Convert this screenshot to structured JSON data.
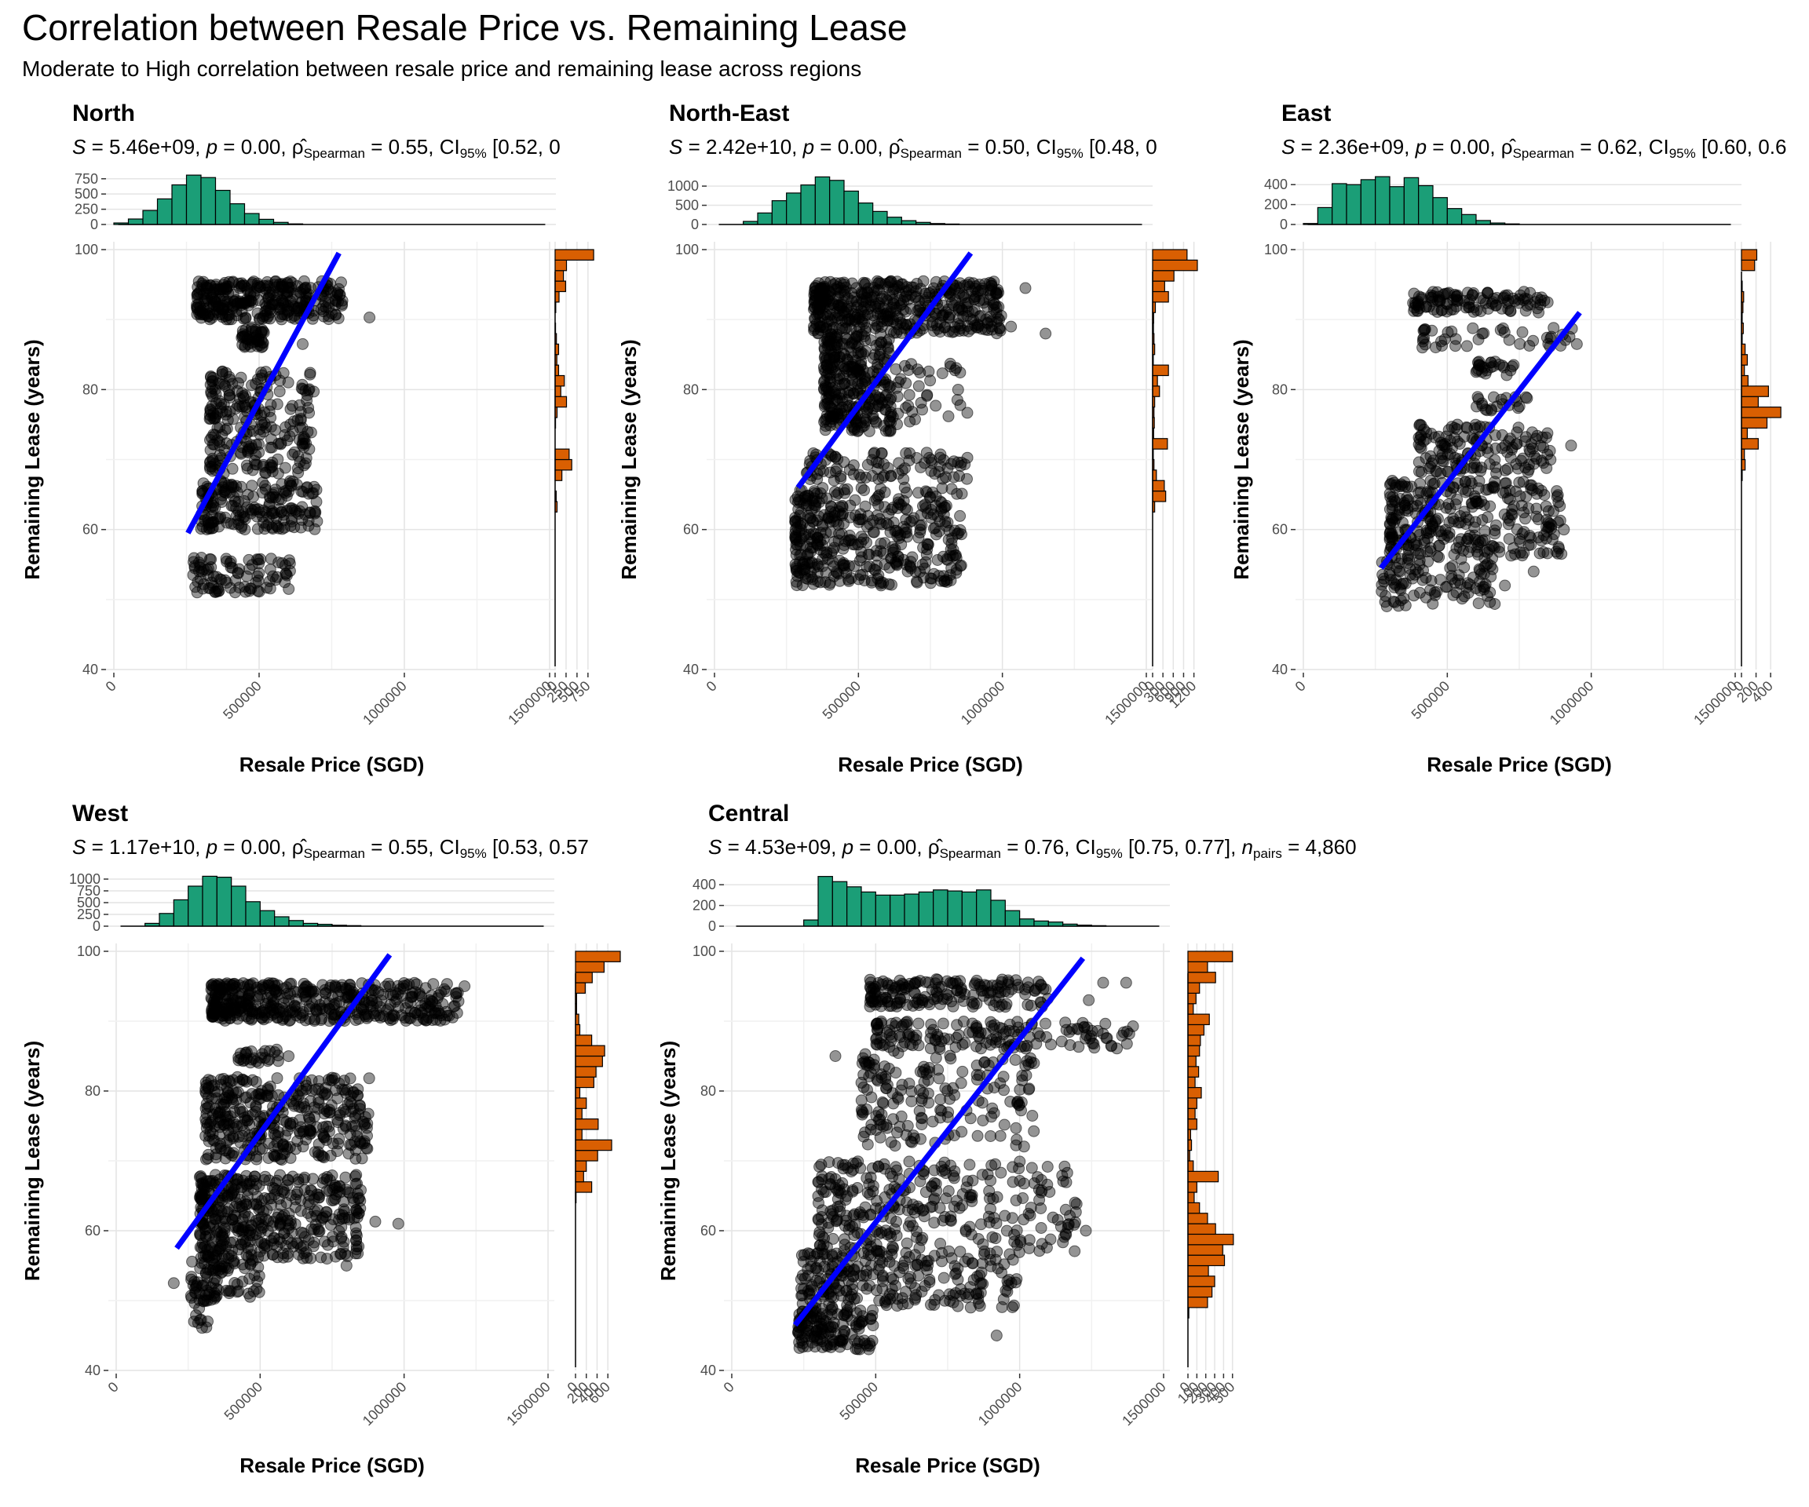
{
  "title": "Correlation between Resale Price vs. Remaining Lease",
  "subtitle": "Moderate to High correlation between resale price and remaining lease across regions",
  "chart_data": [
    {
      "type": "scatter",
      "region": "North",
      "stats": {
        "S": "5.46e+09",
        "p": "0.00",
        "rho": "0.55",
        "ci": "[0.52, 0"
      },
      "xlabel": "Resale Price (SGD)",
      "ylabel": "Remaining Lease (years)",
      "xlim": [
        0,
        1500000
      ],
      "ylim": [
        40,
        100
      ],
      "xticks": [
        "0",
        "500000",
        "1000000",
        "1500000"
      ],
      "yticks": [
        "40",
        "60",
        "80",
        "100"
      ],
      "trend_line": {
        "x": [
          255000,
          775000
        ],
        "y": [
          59.5,
          99.5
        ]
      },
      "clusters": [
        {
          "x0": 285000,
          "x1": 790000,
          "y0": 90,
          "y1": 95.5,
          "n": 900
        },
        {
          "x0": 440000,
          "x1": 520000,
          "y0": 86,
          "y1": 89,
          "n": 120
        },
        {
          "x0": 330000,
          "x1": 690000,
          "y0": 68,
          "y1": 83,
          "n": 700
        },
        {
          "x0": 300000,
          "x1": 700000,
          "y0": 60,
          "y1": 67,
          "n": 550
        },
        {
          "x0": 270000,
          "x1": 620000,
          "y0": 51,
          "y1": 56,
          "n": 260
        }
      ],
      "outliers": [
        [
          880000,
          90.3
        ],
        [
          740000,
          90.5
        ],
        [
          785000,
          92
        ],
        [
          650000,
          86.5
        ]
      ],
      "top_histogram": {
        "axis_ticks": [
          "0",
          "250",
          "500",
          "750"
        ],
        "max": 850,
        "counts": [
          25,
          90,
          230,
          420,
          650,
          810,
          770,
          560,
          340,
          180,
          85,
          35,
          10,
          4,
          2,
          1,
          1,
          0,
          0,
          0,
          0,
          0,
          0,
          0,
          0,
          0,
          0,
          0,
          0,
          0
        ]
      },
      "right_histogram": {
        "axis_ticks": [
          "0",
          "250",
          "500",
          "750"
        ],
        "max": 950,
        "counts": [
          0,
          0,
          0,
          0,
          0,
          0,
          0,
          0,
          0,
          0,
          0,
          0,
          0,
          0,
          3,
          45,
          25,
          5,
          155,
          380,
          320,
          5,
          8,
          10,
          45,
          260,
          130,
          210,
          80,
          40,
          80,
          30,
          10,
          8,
          15,
          90,
          240,
          190,
          260,
          880
        ]
      }
    },
    {
      "type": "scatter",
      "region": "North-East",
      "stats": {
        "S": "2.42e+10",
        "p": "0.00",
        "rho": "0.50",
        "ci": "[0.48, 0"
      },
      "xlabel": "Resale Price (SGD)",
      "ylabel": "Remaining Lease (years)",
      "xlim": [
        0,
        1500000
      ],
      "ylim": [
        40,
        100
      ],
      "xticks": [
        "0",
        "500000",
        "1000000",
        "1500000"
      ],
      "yticks": [
        "40",
        "60",
        "80",
        "100"
      ],
      "trend_line": {
        "x": [
          290000,
          890000
        ],
        "y": [
          66,
          99.5
        ]
      },
      "clusters": [
        {
          "x0": 345000,
          "x1": 1000000,
          "y0": 88,
          "y1": 95.5,
          "n": 1300
        },
        {
          "x0": 380000,
          "x1": 620000,
          "y0": 74,
          "y1": 88,
          "n": 700
        },
        {
          "x0": 380000,
          "x1": 880000,
          "y0": 75,
          "y1": 84,
          "n": 300
        },
        {
          "x0": 320000,
          "x1": 880000,
          "y0": 67,
          "y1": 71,
          "n": 250
        },
        {
          "x0": 280000,
          "x1": 860000,
          "y0": 52,
          "y1": 66,
          "n": 1200
        }
      ],
      "outliers": [
        [
          1030000,
          89
        ],
        [
          1150000,
          88
        ],
        [
          950000,
          88.5
        ],
        [
          1080000,
          94.5
        ],
        [
          810000,
          61
        ]
      ],
      "top_histogram": {
        "axis_ticks": [
          "0",
          "500",
          "1000"
        ],
        "max": 1350,
        "counts": [
          0,
          10,
          80,
          300,
          620,
          820,
          1030,
          1240,
          1150,
          870,
          560,
          340,
          190,
          100,
          55,
          25,
          12,
          6,
          3,
          2,
          1,
          1,
          0,
          0,
          0,
          0,
          0,
          0,
          0,
          0
        ]
      },
      "right_histogram": {
        "axis_ticks": [
          "0",
          "300",
          "600",
          "900",
          "1200"
        ],
        "max": 1300,
        "counts": [
          0,
          0,
          0,
          0,
          0,
          0,
          0,
          0,
          0,
          0,
          0,
          0,
          0,
          0,
          0,
          60,
          380,
          340,
          110,
          40,
          20,
          430,
          30,
          50,
          40,
          60,
          200,
          140,
          460,
          20,
          60,
          40,
          25,
          30,
          80,
          460,
          350,
          620,
          1300,
          1000
        ]
      }
    },
    {
      "type": "scatter",
      "region": "East",
      "stats": {
        "S": "2.36e+09",
        "p": "0.00",
        "rho": "0.62",
        "ci": "[0.60, 0.6"
      },
      "xlabel": "Resale Price (SGD)",
      "ylabel": "Remaining Lease (years)",
      "xlim": [
        0,
        1500000
      ],
      "ylim": [
        40,
        100
      ],
      "xticks": [
        "0",
        "500000",
        "1000000",
        "1500000"
      ],
      "yticks": [
        "40",
        "60",
        "80",
        "100"
      ],
      "trend_line": {
        "x": [
          270000,
          960000
        ],
        "y": [
          54.5,
          91
        ]
      },
      "clusters": [
        {
          "x0": 380000,
          "x1": 850000,
          "y0": 91,
          "y1": 94,
          "n": 320
        },
        {
          "x0": 410000,
          "x1": 960000,
          "y0": 86,
          "y1": 89,
          "n": 120
        },
        {
          "x0": 600000,
          "x1": 750000,
          "y0": 82,
          "y1": 84,
          "n": 70
        },
        {
          "x0": 600000,
          "x1": 780000,
          "y0": 77,
          "y1": 79,
          "n": 60
        },
        {
          "x0": 400000,
          "x1": 870000,
          "y0": 68,
          "y1": 75,
          "n": 420
        },
        {
          "x0": 300000,
          "x1": 900000,
          "y0": 56,
          "y1": 67,
          "n": 900
        },
        {
          "x0": 270000,
          "x1": 670000,
          "y0": 49,
          "y1": 56,
          "n": 300
        }
      ],
      "outliers": [
        [
          950000,
          86.5
        ],
        [
          930000,
          72
        ],
        [
          880000,
          65.5
        ],
        [
          800000,
          54
        ],
        [
          700000,
          52
        ],
        [
          905000,
          60
        ]
      ],
      "top_histogram": {
        "axis_ticks": [
          "0",
          "200",
          "400"
        ],
        "max": 520,
        "counts": [
          10,
          170,
          410,
          400,
          450,
          480,
          380,
          470,
          390,
          270,
          160,
          100,
          40,
          15,
          6,
          3,
          1,
          0,
          0,
          0,
          0,
          0,
          0,
          0,
          0,
          0,
          0,
          0,
          0,
          0
        ]
      },
      "right_histogram": {
        "axis_ticks": [
          "0",
          "200",
          "400"
        ],
        "max": 560,
        "counts": [
          0,
          0,
          0,
          0,
          0,
          0,
          0,
          0,
          0,
          0,
          0,
          0,
          0,
          0,
          0,
          0,
          0,
          0,
          10,
          50,
          40,
          230,
          80,
          350,
          540,
          230,
          370,
          90,
          40,
          80,
          50,
          10,
          25,
          10,
          20,
          30,
          10,
          0,
          180,
          210
        ]
      }
    },
    {
      "type": "scatter",
      "region": "West",
      "stats": {
        "S": "1.17e+10",
        "p": "0.00",
        "rho": "0.55",
        "ci": "[0.53, 0.57"
      },
      "xlabel": "Resale Price (SGD)",
      "ylabel": "Remaining Lease (years)",
      "xlim": [
        0,
        1500000
      ],
      "ylim": [
        40,
        100
      ],
      "xticks": [
        "0",
        "500000",
        "1000000",
        "1500000"
      ],
      "yticks": [
        "40",
        "60",
        "80",
        "100"
      ],
      "trend_line": {
        "x": [
          210000,
          950000
        ],
        "y": [
          57.5,
          99.5
        ]
      },
      "clusters": [
        {
          "x0": 330000,
          "x1": 1200000,
          "y0": 90,
          "y1": 95.5,
          "n": 1300
        },
        {
          "x0": 420000,
          "x1": 600000,
          "y0": 84,
          "y1": 86,
          "n": 80
        },
        {
          "x0": 310000,
          "x1": 880000,
          "y0": 70,
          "y1": 82,
          "n": 1100
        },
        {
          "x0": 290000,
          "x1": 850000,
          "y0": 56,
          "y1": 68,
          "n": 1300
        },
        {
          "x0": 260000,
          "x1": 500000,
          "y0": 50,
          "y1": 56,
          "n": 250
        },
        {
          "x0": 270000,
          "x1": 320000,
          "y0": 46,
          "y1": 50,
          "n": 40
        }
      ],
      "outliers": [
        [
          980000,
          61
        ],
        [
          900000,
          61.3
        ],
        [
          800000,
          55
        ],
        [
          1180000,
          94
        ],
        [
          1210000,
          95
        ],
        [
          980000,
          92
        ],
        [
          200000,
          52.5
        ]
      ],
      "top_histogram": {
        "axis_ticks": [
          "0",
          "250",
          "500",
          "750",
          "1000"
        ],
        "max": 1100,
        "counts": [
          0,
          5,
          60,
          270,
          560,
          850,
          1060,
          1040,
          850,
          520,
          330,
          200,
          120,
          60,
          40,
          20,
          12,
          6,
          3,
          2,
          1,
          0,
          0,
          0,
          0,
          0,
          0,
          0,
          0,
          0
        ]
      },
      "right_histogram": {
        "axis_ticks": [
          "0",
          "200",
          "400",
          "600"
        ],
        "max": 830,
        "counts": [
          0,
          0,
          0,
          0,
          0,
          0,
          0,
          0,
          0,
          0,
          0,
          0,
          0,
          0,
          0,
          5,
          10,
          300,
          150,
          200,
          410,
          670,
          120,
          420,
          120,
          200,
          80,
          340,
          380,
          500,
          540,
          300,
          80,
          60,
          20,
          20,
          180,
          310,
          530,
          830
        ]
      }
    },
    {
      "type": "scatter",
      "region": "Central",
      "stats": {
        "S": "4.53e+09",
        "p": "0.00",
        "rho": "0.76",
        "ci": "[0.75, 0.77]",
        "n_pairs": "4,860"
      },
      "xlabel": "Resale Price (SGD)",
      "ylabel": "Remaining Lease (years)",
      "xlim": [
        0,
        1500000
      ],
      "ylim": [
        40,
        100
      ],
      "xticks": [
        "0",
        "500000",
        "1000000",
        "1500000"
      ],
      "yticks": [
        "40",
        "60",
        "80",
        "100"
      ],
      "trend_line": {
        "x": [
          220000,
          1220000
        ],
        "y": [
          46.5,
          99
        ]
      },
      "clusters": [
        {
          "x0": 480000,
          "x1": 1100000,
          "y0": 92,
          "y1": 96,
          "n": 500
        },
        {
          "x0": 500000,
          "x1": 1400000,
          "y0": 86,
          "y1": 90,
          "n": 450
        },
        {
          "x0": 450000,
          "x1": 1050000,
          "y0": 72,
          "y1": 86,
          "n": 500
        },
        {
          "x0": 300000,
          "x1": 1200000,
          "y0": 57,
          "y1": 70,
          "n": 900
        },
        {
          "x0": 240000,
          "x1": 1000000,
          "y0": 49,
          "y1": 57,
          "n": 700
        },
        {
          "x0": 230000,
          "x1": 500000,
          "y0": 43,
          "y1": 49,
          "n": 400
        }
      ],
      "outliers": [
        [
          920000,
          45
        ],
        [
          1240000,
          93
        ],
        [
          1290000,
          95.5
        ],
        [
          1370000,
          95.5
        ],
        [
          1160000,
          63
        ],
        [
          1230000,
          60
        ],
        [
          360000,
          85
        ],
        [
          510000,
          77
        ]
      ],
      "top_histogram": {
        "axis_ticks": [
          "0",
          "200",
          "400"
        ],
        "max": 500,
        "counts": [
          0,
          0,
          0,
          0,
          0,
          60,
          480,
          430,
          380,
          330,
          300,
          300,
          310,
          330,
          350,
          340,
          330,
          350,
          250,
          150,
          70,
          50,
          40,
          20,
          10,
          5,
          3,
          0,
          0,
          0
        ]
      },
      "right_histogram": {
        "axis_ticks": [
          "0",
          "100",
          "200",
          "300",
          "400",
          "500"
        ],
        "max": 520,
        "counts": [
          0,
          0,
          0,
          0,
          0,
          10,
          220,
          270,
          300,
          230,
          410,
          390,
          510,
          310,
          220,
          130,
          70,
          100,
          340,
          60,
          20,
          40,
          30,
          100,
          80,
          100,
          150,
          80,
          120,
          90,
          130,
          140,
          180,
          240,
          60,
          90,
          130,
          310,
          220,
          500
        ]
      }
    }
  ]
}
